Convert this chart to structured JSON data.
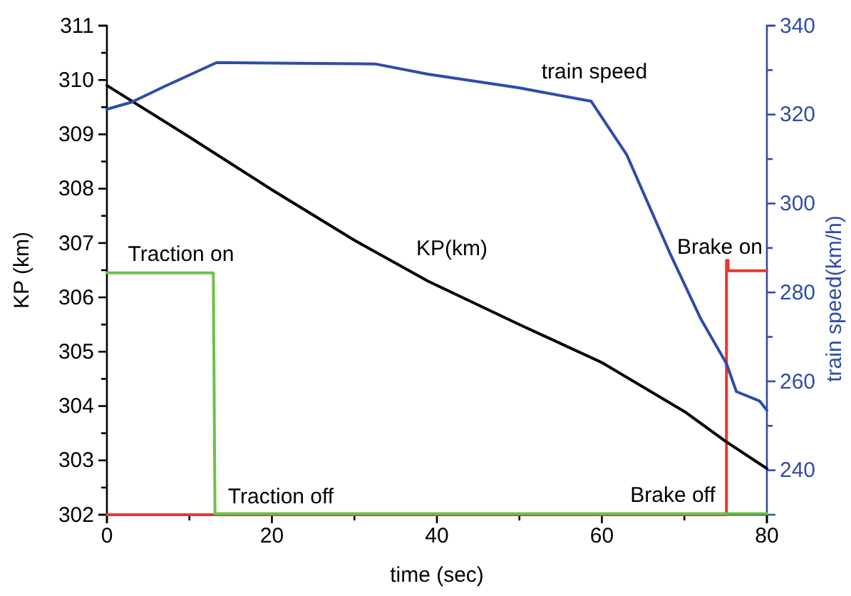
{
  "chart_data": {
    "type": "line",
    "xlabel": "time (sec)",
    "ylabel": "KP (km)",
    "y2label": "train speed(km/h)",
    "xlim": [
      0,
      80
    ],
    "xticks": [
      0,
      {
        "value": 10,
        "label": null
      },
      20,
      {
        "value": 30,
        "label": null
      },
      40,
      {
        "value": 50,
        "label": null
      },
      60,
      {
        "value": 70,
        "label": null
      },
      80
    ],
    "ylim": [
      302,
      311
    ],
    "yticks": [
      302,
      {
        "value": 302.5,
        "label": null
      },
      303,
      {
        "value": 303.5,
        "label": null
      },
      304,
      {
        "value": 304.5,
        "label": null
      },
      305,
      {
        "value": 305.5,
        "label": null
      },
      306,
      {
        "value": 306.5,
        "label": null
      },
      307,
      {
        "value": 307.5,
        "label": null
      },
      308,
      {
        "value": 308.5,
        "label": null
      },
      309,
      {
        "value": 309.5,
        "label": null
      },
      310,
      {
        "value": 310.5,
        "label": null
      },
      311
    ],
    "y2lim": [
      230,
      340
    ],
    "y2ticks": [
      240,
      {
        "value": 250,
        "label": null
      },
      260,
      {
        "value": 270,
        "label": null
      },
      280,
      {
        "value": 290,
        "label": null
      },
      300,
      {
        "value": 310,
        "label": null
      },
      320,
      {
        "value": 330,
        "label": null
      },
      340
    ],
    "grid": false,
    "line_style": "solid",
    "marker": "none",
    "series": [
      {
        "color": "#e8372e",
        "axis": "y",
        "x": [
          0,
          75.1,
          75.1,
          75.3,
          75.3,
          80
        ],
        "values": [
          302,
          302,
          306.68,
          306.68,
          306.49,
          306.49
        ]
      },
      {
        "color": "#6cc24a",
        "axis": "y",
        "x": [
          0,
          12.9,
          13.1,
          80
        ],
        "values": [
          306.45,
          306.45,
          302.02,
          302.02
        ]
      },
      {
        "color": "#000000",
        "axis": "y",
        "x": [
          0,
          10,
          20,
          30,
          38.9,
          50,
          60,
          70,
          75,
          80
        ],
        "values": [
          309.9,
          308.95,
          307.98,
          307.05,
          306.3,
          305.5,
          304.8,
          303.9,
          303.35,
          302.85
        ]
      },
      {
        "color": "#2f4ca8",
        "axis": "y2",
        "x": [
          0,
          3,
          7.3,
          13.3,
          20,
          32.5,
          38.9,
          50,
          58.7,
          63,
          68.2,
          72,
          75.1,
          76.3,
          79.1,
          80
        ],
        "values": [
          321.2,
          322.8,
          326.6,
          331.7,
          331.6,
          331.4,
          329.1,
          326,
          323,
          311,
          289,
          274,
          264,
          257.7,
          255.6,
          253.5
        ]
      }
    ],
    "annotations": [
      "train speed",
      "KP(km)",
      "Traction on",
      "Traction off",
      "Brake on",
      "Brake off"
    ]
  }
}
